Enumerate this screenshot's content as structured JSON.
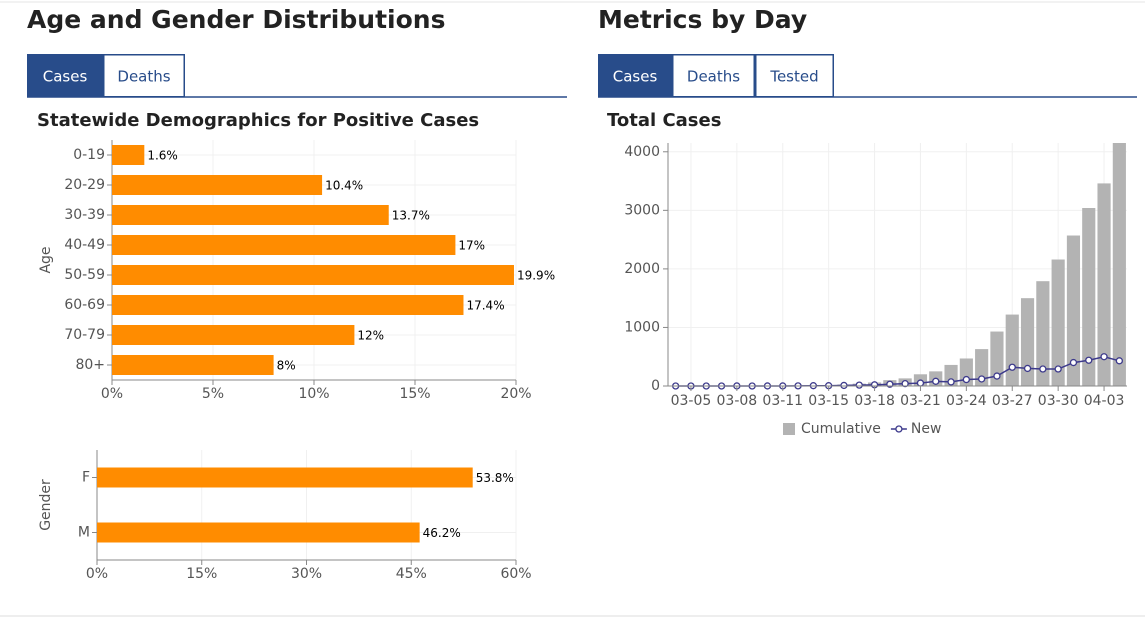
{
  "sections": [
    {
      "title": "Age and Gender Distributions",
      "tabs": [
        "Cases",
        "Deaths"
      ],
      "active_tab": 0
    },
    {
      "title": "Metrics by Day",
      "tabs": [
        "Cases",
        "Deaths",
        "Tested"
      ],
      "active_tab": 0
    }
  ],
  "chart_data": [
    {
      "type": "barh",
      "title": "Statewide Demographics for Positive Cases",
      "y_label": "Age",
      "categories": [
        "0-19",
        "20-29",
        "30-39",
        "40-49",
        "50-59",
        "60-69",
        "70-79",
        "80+"
      ],
      "values": [
        1.6,
        10.4,
        13.7,
        17,
        19.9,
        17.4,
        12,
        8
      ],
      "value_labels": [
        "1.6%",
        "10.4%",
        "13.7%",
        "17%",
        "19.9%",
        "17.4%",
        "12%",
        "8%"
      ],
      "color": "#ff8c00",
      "xlim": [
        0,
        20
      ],
      "xticks": [
        {
          "value": 0,
          "label": "0%"
        },
        {
          "value": 5,
          "label": "5%"
        },
        {
          "value": 10,
          "label": "10%"
        },
        {
          "value": 15,
          "label": "15%"
        },
        {
          "value": 20,
          "label": "20%"
        }
      ],
      "grid": true
    },
    {
      "type": "barh",
      "y_label": "Gender",
      "categories": [
        "F",
        "M"
      ],
      "values": [
        53.8,
        46.2
      ],
      "value_labels": [
        "53.8%",
        "46.2%"
      ],
      "color": "#ff8c00",
      "xlim": [
        0,
        60
      ],
      "xticks": [
        {
          "value": 0,
          "label": "0%"
        },
        {
          "value": 15,
          "label": "15%"
        },
        {
          "value": 30,
          "label": "30%"
        },
        {
          "value": 45,
          "label": "45%"
        },
        {
          "value": 60,
          "label": "60%"
        }
      ],
      "grid": true
    },
    {
      "type": "bar_line",
      "title": "Total Cases",
      "categories": [
        null,
        "03-05",
        null,
        null,
        "03-08",
        null,
        null,
        "03-11",
        null,
        null,
        "03-15",
        null,
        null,
        "03-18",
        null,
        null,
        "03-21",
        null,
        null,
        "03-24",
        null,
        null,
        "03-27",
        null,
        null,
        "03-30",
        null,
        null,
        "04-03",
        null
      ],
      "series": [
        {
          "name": "Cumulative",
          "color": "#b3b3b3",
          "values": [
            0,
            0,
            0,
            0,
            1,
            1,
            2,
            3,
            5,
            10,
            15,
            25,
            40,
            60,
            100,
            130,
            200,
            250,
            360,
            470,
            630,
            930,
            1220,
            1500,
            1790,
            2160,
            2570,
            3040,
            3460,
            4150
          ]
        },
        {
          "name": "New",
          "color": "#3d3a8c",
          "values": [
            0,
            0,
            0,
            0,
            1,
            0,
            1,
            1,
            2,
            5,
            5,
            10,
            15,
            20,
            30,
            40,
            50,
            80,
            70,
            110,
            120,
            170,
            320,
            300,
            290,
            290,
            400,
            440,
            500,
            430
          ]
        }
      ],
      "ylim": [
        0,
        4150
      ],
      "yticks": [
        0,
        1000,
        2000,
        3000,
        4000
      ],
      "grid": true,
      "legend": "bottom"
    }
  ]
}
